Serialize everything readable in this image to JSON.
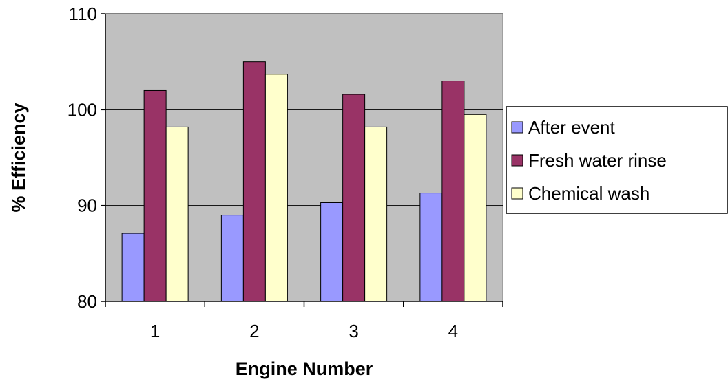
{
  "chart_data": {
    "type": "bar",
    "title": "",
    "xlabel": "Engine Number",
    "ylabel": "% Efficiency",
    "categories": [
      "1",
      "2",
      "3",
      "4"
    ],
    "ylim": [
      80,
      110
    ],
    "yticks": [
      80,
      90,
      100,
      110
    ],
    "grid": true,
    "legend_position": "right",
    "series": [
      {
        "name": "After event",
        "color": "#9999ff",
        "values": [
          87.1,
          89.0,
          90.3,
          91.3
        ]
      },
      {
        "name": "Fresh water rinse",
        "color": "#993366",
        "values": [
          102.0,
          105.0,
          101.6,
          103.0
        ]
      },
      {
        "name": "Chemical wash",
        "color": "#ffffcc",
        "values": [
          98.2,
          103.7,
          98.2,
          99.5
        ]
      }
    ],
    "plot_background": "#c0c0c0"
  }
}
